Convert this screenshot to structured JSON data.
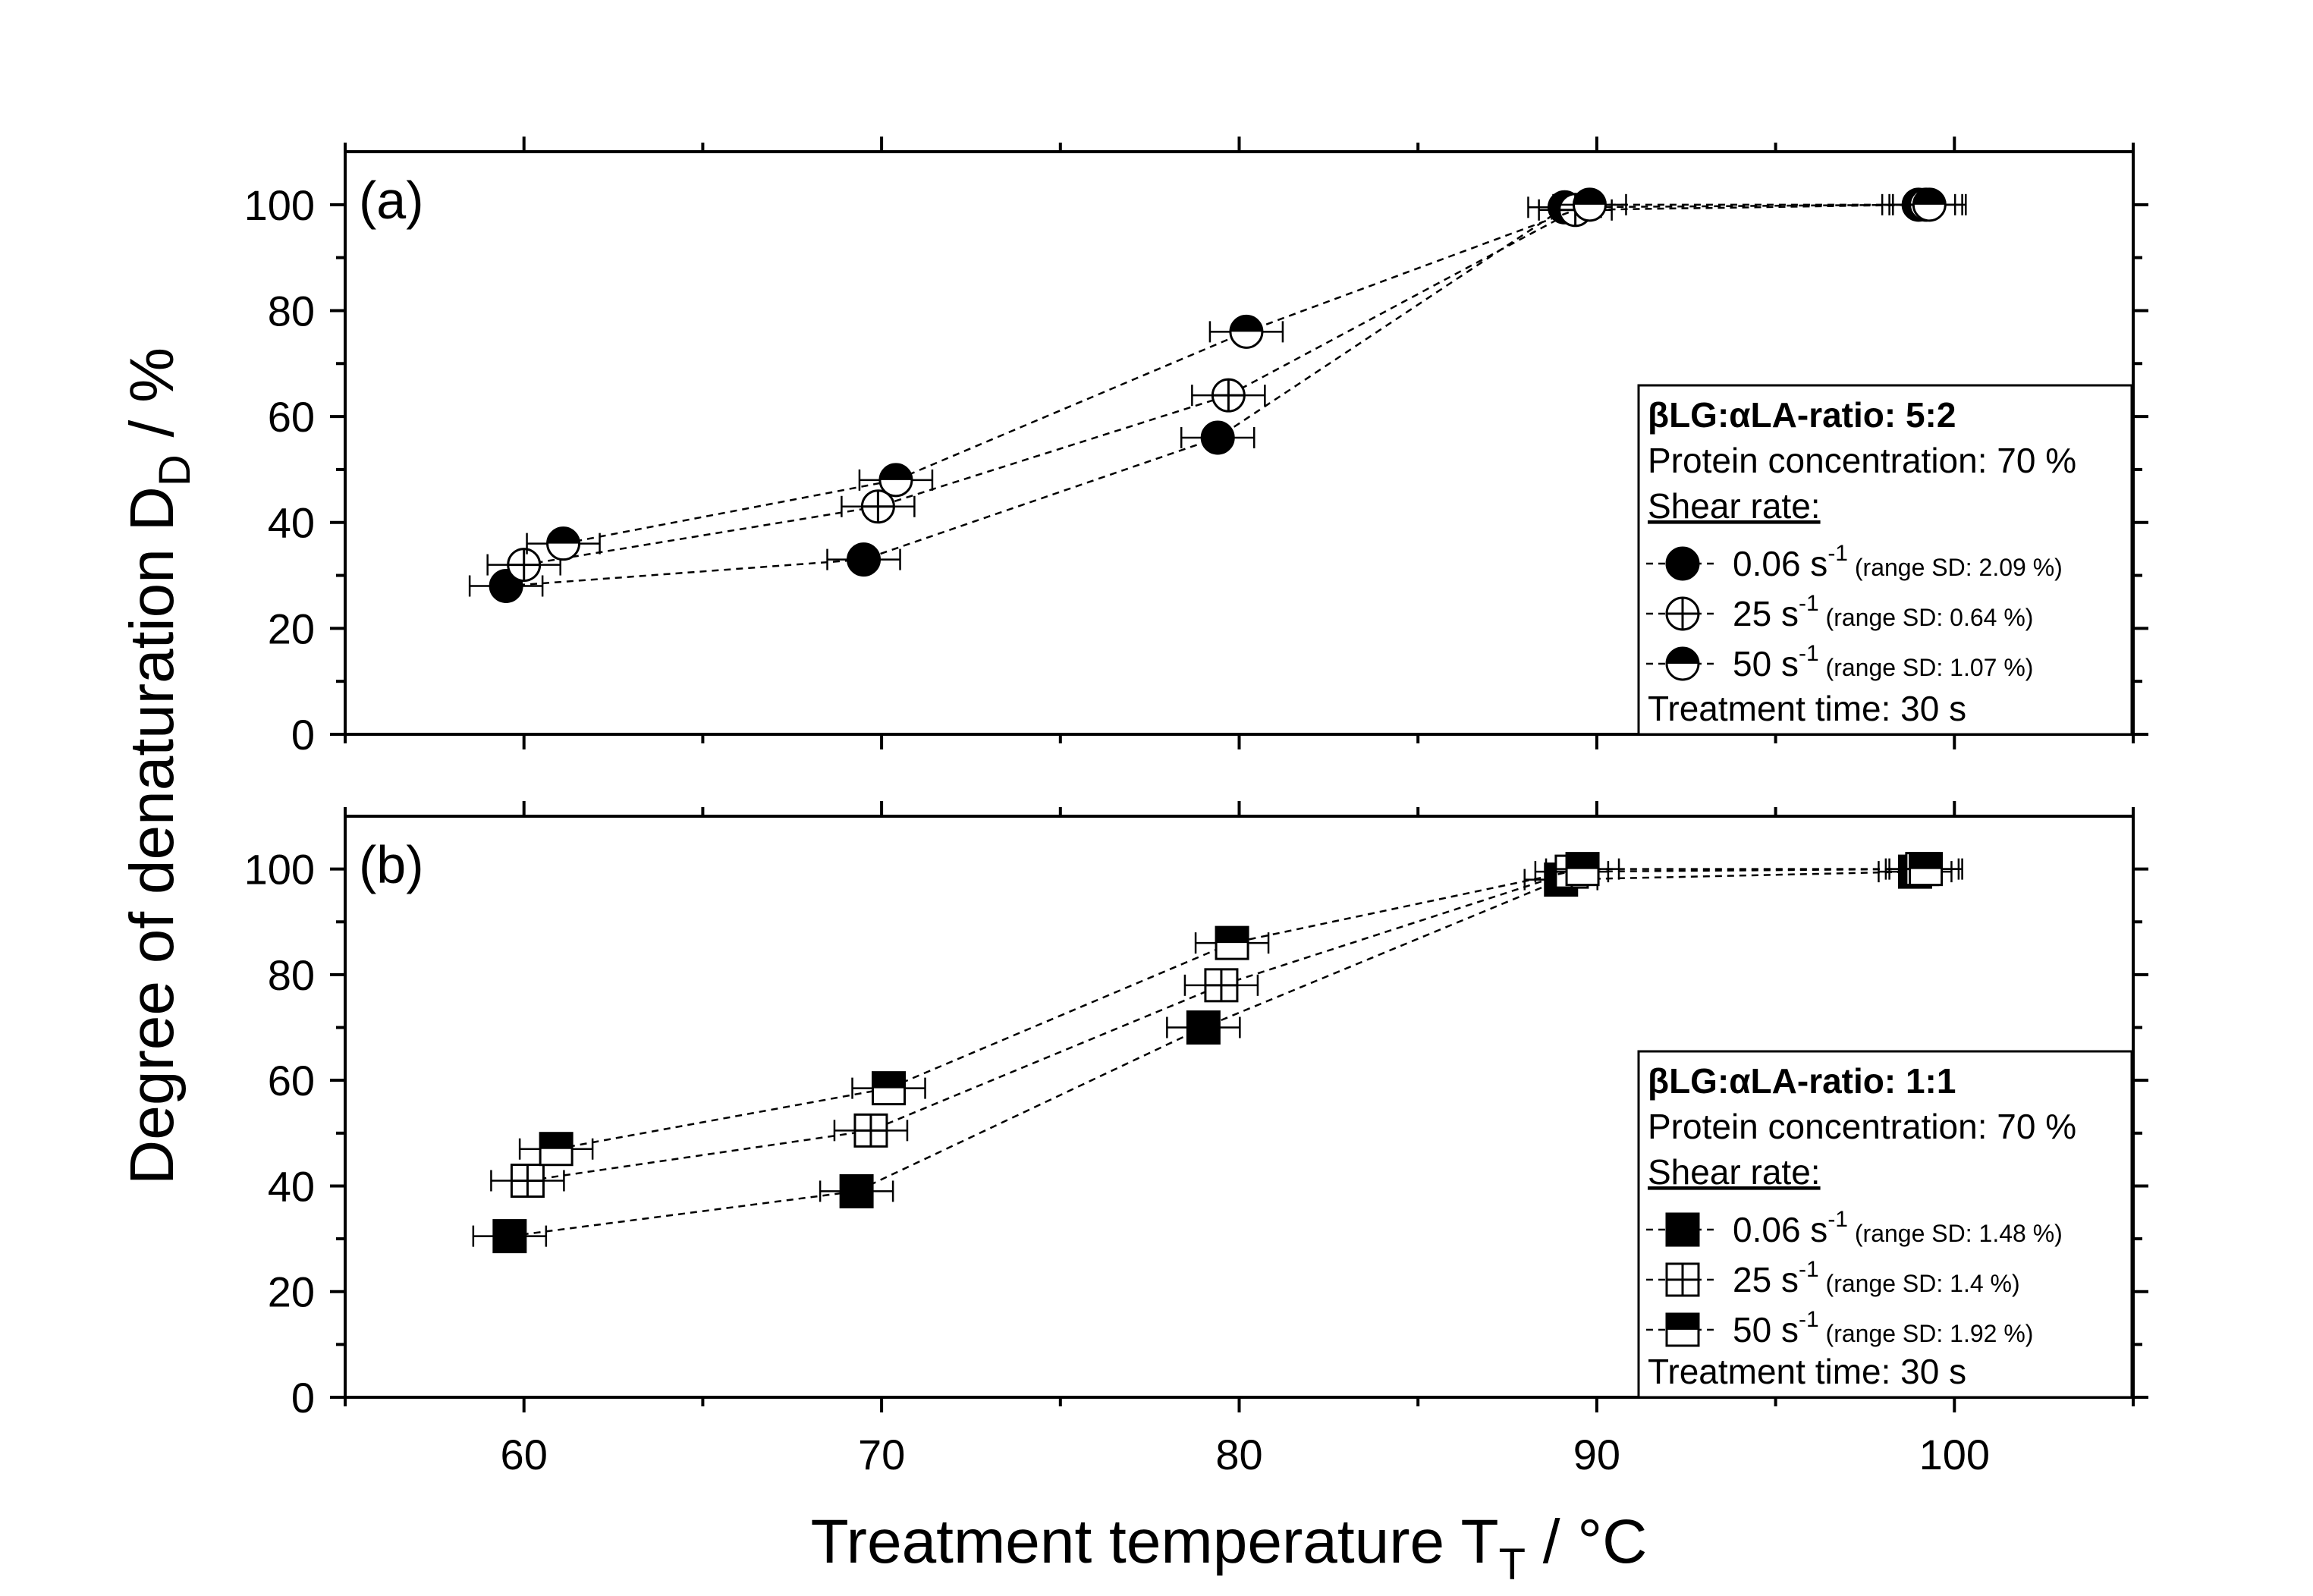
{
  "chart_data": {
    "type": "scatter",
    "xlabel": {
      "main": "Treatment temperature T",
      "sub": "T",
      "unit": " / °C"
    },
    "ylabel": {
      "main": "Degree of denaturation D",
      "sub": "D",
      "unit": " / %"
    },
    "xlim": [
      55,
      105
    ],
    "xticks": [
      "60",
      "70",
      "80",
      "90",
      "100"
    ],
    "ylim": [
      0,
      110
    ],
    "yticks": [
      "0",
      "20",
      "40",
      "60",
      "80",
      "100"
    ],
    "grid": false,
    "line_style": "dashed",
    "panels": [
      {
        "label": "(a)",
        "marker_shape": "circle",
        "legend": {
          "title": "βLG:αLA-ratio: 5:2",
          "protein": "Protein concentration: 70 %",
          "shear_header": "Shear rate:",
          "time": "Treatment time: 30 s"
        },
        "series": [
          {
            "name": "0.06 s",
            "sup": "-1",
            "note": "(range SD: 2.09 %)",
            "fill": "full",
            "x": [
              59.5,
              69.5,
              79.4,
              89.1,
              99.0
            ],
            "y": [
              28,
              33,
              56,
              99.5,
              100
            ]
          },
          {
            "name": "25 s",
            "sup": "-1",
            "note": "(range SD: 0.64 %)",
            "fill": "cross",
            "x": [
              60.0,
              69.9,
              79.7,
              89.4,
              99.2
            ],
            "y": [
              32,
              43,
              64,
              99,
              100
            ]
          },
          {
            "name": "50 s",
            "sup": "-1",
            "note": "(range SD: 1.07 %)",
            "fill": "half",
            "x": [
              61.1,
              70.4,
              80.2,
              89.8,
              99.3
            ],
            "y": [
              36,
              48,
              76,
              100,
              100
            ]
          }
        ]
      },
      {
        "label": "(b)",
        "marker_shape": "square",
        "legend": {
          "title": "βLG:αLA-ratio: 1:1",
          "protein": "Protein concentration: 70 %",
          "shear_header": "Shear rate:",
          "time": "Treatment time: 30 s"
        },
        "series": [
          {
            "name": "0.06 s",
            "sup": "-1",
            "note": "(range SD: 1.48 %)",
            "fill": "full",
            "x": [
              59.6,
              69.3,
              79.0,
              89.0,
              98.9
            ],
            "y": [
              30.5,
              39,
              70,
              98,
              99.5
            ]
          },
          {
            "name": "25 s",
            "sup": "-1",
            "note": "(range SD: 1.4 %)",
            "fill": "cross",
            "x": [
              60.1,
              69.7,
              79.5,
              89.3,
              99.1
            ],
            "y": [
              41,
              50.5,
              78,
              99.5,
              100
            ]
          },
          {
            "name": "50 s",
            "sup": "-1",
            "note": "(range SD: 1.92 %)",
            "fill": "half",
            "x": [
              60.9,
              70.2,
              79.8,
              89.6,
              99.2
            ],
            "y": [
              47,
              58.5,
              86,
              100,
              100
            ]
          }
        ]
      }
    ]
  }
}
